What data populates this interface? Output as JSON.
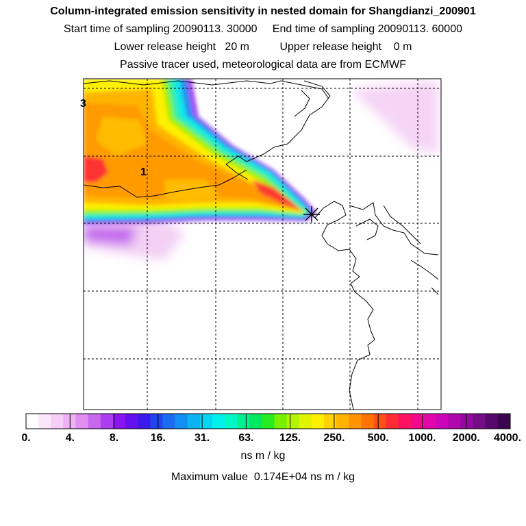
{
  "titles": {
    "line1": "Column-integrated emission sensitivity in nested domain for Shangdianzi_200901",
    "line2": "Start time of sampling 20090113. 30000     End time of sampling 20090113. 60000",
    "line3": "Lower release height   20 m          Upper release height    0 m",
    "line4": "Passive tracer used, meteorological data are from ECMWF"
  },
  "contour_labels": [
    "3",
    "1"
  ],
  "colorbar": {
    "ticks": [
      "0.",
      "4.",
      "8.",
      "16.",
      "31.",
      "63.",
      "125.",
      "250.",
      "500.",
      "1000.",
      "2000.",
      "4000."
    ],
    "colors": [
      "#ffffff",
      "#fbe6fb",
      "#f5cdf7",
      "#eeb2f4",
      "#e08ef0",
      "#c868ee",
      "#ad3ef0",
      "#8c14f2",
      "#6410ef",
      "#3c1aec",
      "#2244f0",
      "#1b6cf2",
      "#138ef4",
      "#0cb2f4",
      "#06d4f2",
      "#00f0ec",
      "#00f8c4",
      "#00f092",
      "#00e860",
      "#28ec22",
      "#78f000",
      "#b4f400",
      "#e0f400",
      "#fff000",
      "#ffd200",
      "#ffb200",
      "#ff9400",
      "#ff7400",
      "#ff5018",
      "#ff2c36",
      "#ff1060",
      "#f4088c",
      "#e206aa",
      "#cc06b8",
      "#b008ae",
      "#920a9e",
      "#740c86",
      "#56086a",
      "#3a0450"
    ],
    "units": "ns m / kg",
    "max_label": "Maximum value  0.174E+04 ns m / kg"
  },
  "map": {
    "release_marker": "release-site-star-icon",
    "colors": {
      "frame": "#000000",
      "grid": "#000000",
      "coast": "#000000"
    }
  }
}
